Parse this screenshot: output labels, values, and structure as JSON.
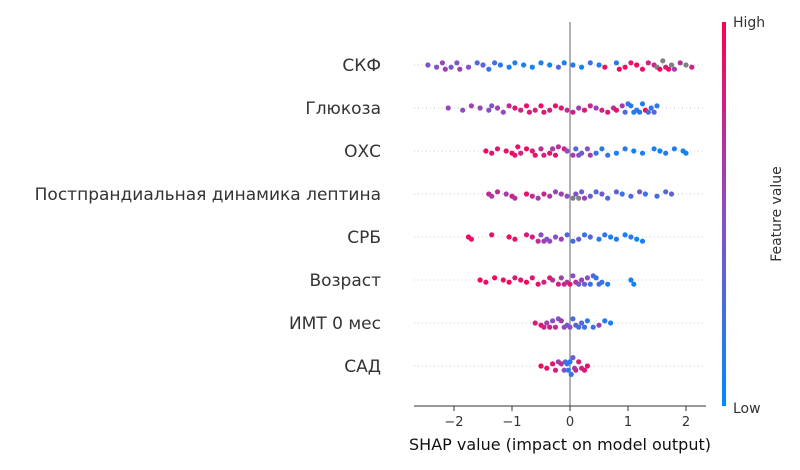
{
  "chart_data": {
    "type": "scatter",
    "subtype": "shap-beeswarm",
    "xlabel": "SHAP value (impact on model output)",
    "xlim": [
      -2.7,
      2.35
    ],
    "xticks": [
      -2,
      -1,
      0,
      1,
      2
    ],
    "xtick_labels": [
      "−2",
      "−1",
      "0",
      "1",
      "2"
    ],
    "grid": false,
    "colorbar": {
      "label": "Feature value",
      "high_label": "High",
      "low_label": "Low",
      "color_low": "#008bfb",
      "color_high": "#ff0052",
      "missing_color": "#808080"
    },
    "features": [
      "СКФ",
      "Глюкоза",
      "ОХС",
      "Постпрандиальная динамика лептина",
      "СРБ",
      "Возраст",
      "ИМТ 0 мес",
      "САД"
    ],
    "series": [
      {
        "feature": "СКФ",
        "points": [
          {
            "x": -2.45,
            "c": 0.45
          },
          {
            "x": -2.3,
            "c": 0.5
          },
          {
            "x": -2.2,
            "c": 0.55
          },
          {
            "x": -2.15,
            "c": 0.6
          },
          {
            "x": -2.05,
            "c": 0.4
          },
          {
            "x": -1.95,
            "c": 0.45
          },
          {
            "x": -1.9,
            "c": 0.6
          },
          {
            "x": -1.75,
            "c": 0.5
          },
          {
            "x": -1.6,
            "c": 0.3
          },
          {
            "x": -1.5,
            "c": 0.35
          },
          {
            "x": -1.4,
            "c": 0.2
          },
          {
            "x": -1.3,
            "c": 0.25
          },
          {
            "x": -1.2,
            "c": 0.15
          },
          {
            "x": -1.05,
            "c": 0.1
          },
          {
            "x": -0.95,
            "c": 0.15
          },
          {
            "x": -0.8,
            "c": 0.1
          },
          {
            "x": -0.65,
            "c": 0.05
          },
          {
            "x": -0.5,
            "c": 0.1
          },
          {
            "x": -0.35,
            "c": 0.05
          },
          {
            "x": -0.2,
            "c": 0.3
          },
          {
            "x": -0.1,
            "c": 0.1
          },
          {
            "x": 0.05,
            "c": 0.15
          },
          {
            "x": 0.2,
            "c": 0.05
          },
          {
            "x": 0.35,
            "c": 0.2
          },
          {
            "x": 0.5,
            "c": 0.1
          },
          {
            "x": 0.6,
            "c": 0.9
          },
          {
            "x": 0.8,
            "c": 0.15
          },
          {
            "x": 0.85,
            "c": 0.95
          },
          {
            "x": 0.95,
            "c": 0.9
          },
          {
            "x": 1.05,
            "c": 0.85
          },
          {
            "x": 1.15,
            "c": 0.95
          },
          {
            "x": 1.25,
            "c": 0.9
          },
          {
            "x": 1.35,
            "c": 0.8
          },
          {
            "x": 1.45,
            "c": 0.75
          },
          {
            "x": 1.5,
            "c": -1
          },
          {
            "x": 1.55,
            "c": 0.95
          },
          {
            "x": 1.6,
            "c": -1
          },
          {
            "x": 1.65,
            "c": 0.85
          },
          {
            "x": 1.7,
            "c": 0.9
          },
          {
            "x": 1.75,
            "c": -1
          },
          {
            "x": 1.8,
            "c": 0.6
          },
          {
            "x": 1.9,
            "c": 0.7
          },
          {
            "x": 2.0,
            "c": -1
          },
          {
            "x": 2.1,
            "c": 0.8
          }
        ]
      },
      {
        "feature": "Глюкоза",
        "points": [
          {
            "x": -2.1,
            "c": 0.55
          },
          {
            "x": -1.85,
            "c": 0.5
          },
          {
            "x": -1.7,
            "c": 0.6
          },
          {
            "x": -1.55,
            "c": 0.55
          },
          {
            "x": -1.4,
            "c": 0.5
          },
          {
            "x": -1.35,
            "c": 0.45
          },
          {
            "x": -1.25,
            "c": 0.6
          },
          {
            "x": -1.15,
            "c": 0.55
          },
          {
            "x": -1.05,
            "c": 0.75
          },
          {
            "x": -0.95,
            "c": 0.85
          },
          {
            "x": -0.85,
            "c": 0.8
          },
          {
            "x": -0.75,
            "c": 0.9
          },
          {
            "x": -0.7,
            "c": 0.85
          },
          {
            "x": -0.6,
            "c": 0.8
          },
          {
            "x": -0.5,
            "c": 0.9
          },
          {
            "x": -0.45,
            "c": 0.85
          },
          {
            "x": -0.35,
            "c": 0.8
          },
          {
            "x": -0.25,
            "c": 0.9
          },
          {
            "x": -0.15,
            "c": 0.85
          },
          {
            "x": -0.05,
            "c": 0.7
          },
          {
            "x": 0.05,
            "c": 0.8
          },
          {
            "x": 0.15,
            "c": 0.6
          },
          {
            "x": 0.25,
            "c": 0.85
          },
          {
            "x": 0.35,
            "c": 0.75
          },
          {
            "x": 0.45,
            "c": 0.6
          },
          {
            "x": 0.55,
            "c": 0.8
          },
          {
            "x": 0.65,
            "c": 0.85
          },
          {
            "x": 0.75,
            "c": 0.7
          },
          {
            "x": 0.8,
            "c": 0.9
          },
          {
            "x": 0.9,
            "c": 0.6
          },
          {
            "x": 0.95,
            "c": 0.3
          },
          {
            "x": 1.0,
            "c": 0.2
          },
          {
            "x": 1.05,
            "c": 0.15
          },
          {
            "x": 1.1,
            "c": 0.1
          },
          {
            "x": 1.15,
            "c": 0.2
          },
          {
            "x": 1.2,
            "c": 0.15
          },
          {
            "x": 1.25,
            "c": 0.1
          },
          {
            "x": 1.3,
            "c": 0.95
          },
          {
            "x": 1.35,
            "c": 0.25
          },
          {
            "x": 1.4,
            "c": 0.2
          },
          {
            "x": 1.45,
            "c": 0.3
          },
          {
            "x": 1.5,
            "c": 0.15
          }
        ]
      },
      {
        "feature": "ОХС",
        "points": [
          {
            "x": -1.45,
            "c": 0.95
          },
          {
            "x": -1.35,
            "c": 0.9
          },
          {
            "x": -1.25,
            "c": 0.85
          },
          {
            "x": -1.1,
            "c": 0.9
          },
          {
            "x": -1.0,
            "c": 0.95
          },
          {
            "x": -0.95,
            "c": 0.85
          },
          {
            "x": -0.9,
            "c": 0.9
          },
          {
            "x": -0.85,
            "c": 0.8
          },
          {
            "x": -0.75,
            "c": 0.95
          },
          {
            "x": -0.65,
            "c": 0.85
          },
          {
            "x": -0.6,
            "c": 0.9
          },
          {
            "x": -0.5,
            "c": 0.7
          },
          {
            "x": -0.45,
            "c": 0.8
          },
          {
            "x": -0.35,
            "c": 0.9
          },
          {
            "x": -0.3,
            "c": 0.6
          },
          {
            "x": -0.25,
            "c": 0.85
          },
          {
            "x": -0.2,
            "c": 0.7
          },
          {
            "x": -0.1,
            "c": 0.8
          },
          {
            "x": -0.05,
            "c": 0.5
          },
          {
            "x": 0.05,
            "c": 0.6
          },
          {
            "x": 0.1,
            "c": 0.3
          },
          {
            "x": 0.15,
            "c": 0.5
          },
          {
            "x": 0.2,
            "c": 0.4
          },
          {
            "x": 0.3,
            "c": 0.5
          },
          {
            "x": 0.35,
            "c": 0.6
          },
          {
            "x": 0.45,
            "c": 0.2
          },
          {
            "x": 0.55,
            "c": 0.15
          },
          {
            "x": 0.65,
            "c": 0.2
          },
          {
            "x": 0.8,
            "c": 0.1
          },
          {
            "x": 0.95,
            "c": 0.15
          },
          {
            "x": 1.1,
            "c": 0.05
          },
          {
            "x": 1.25,
            "c": 0.1
          },
          {
            "x": 1.45,
            "c": 0.1
          },
          {
            "x": 1.55,
            "c": 0.05
          },
          {
            "x": 1.65,
            "c": 0.15
          },
          {
            "x": 1.8,
            "c": 0.1
          },
          {
            "x": 1.95,
            "c": 0.05
          },
          {
            "x": 2.0,
            "c": 0.1
          }
        ]
      },
      {
        "feature": "Постпрандиальная динамика лептина",
        "points": [
          {
            "x": -1.4,
            "c": 0.75
          },
          {
            "x": -1.35,
            "c": 0.6
          },
          {
            "x": -1.25,
            "c": 0.7
          },
          {
            "x": -1.1,
            "c": 0.6
          },
          {
            "x": -1.0,
            "c": 0.8
          },
          {
            "x": -0.95,
            "c": 0.65
          },
          {
            "x": -0.75,
            "c": 0.9
          },
          {
            "x": -0.65,
            "c": 0.7
          },
          {
            "x": -0.55,
            "c": 0.6
          },
          {
            "x": -0.45,
            "c": 0.75
          },
          {
            "x": -0.35,
            "c": 0.65
          },
          {
            "x": -0.25,
            "c": 0.55
          },
          {
            "x": -0.15,
            "c": 0.6
          },
          {
            "x": -0.05,
            "c": 0.5
          },
          {
            "x": 0.05,
            "c": -1
          },
          {
            "x": 0.1,
            "c": 0.45
          },
          {
            "x": 0.15,
            "c": -1
          },
          {
            "x": 0.2,
            "c": 0.4
          },
          {
            "x": 0.25,
            "c": 0.6
          },
          {
            "x": 0.35,
            "c": 0.35
          },
          {
            "x": 0.45,
            "c": 0.3
          },
          {
            "x": 0.55,
            "c": 0.4
          },
          {
            "x": 0.65,
            "c": 0.25
          },
          {
            "x": 0.8,
            "c": 0.35
          },
          {
            "x": 0.9,
            "c": 0.2
          },
          {
            "x": 1.05,
            "c": 0.3
          },
          {
            "x": 1.2,
            "c": 0.45
          },
          {
            "x": 1.3,
            "c": 0.2
          },
          {
            "x": 1.5,
            "c": 0.25
          },
          {
            "x": 1.65,
            "c": 0.3
          },
          {
            "x": 1.75,
            "c": 0.35
          }
        ]
      },
      {
        "feature": "СРБ",
        "points": [
          {
            "x": -1.75,
            "c": 0.95
          },
          {
            "x": -1.7,
            "c": 0.9
          },
          {
            "x": -1.35,
            "c": 0.9
          },
          {
            "x": -1.05,
            "c": 0.95
          },
          {
            "x": -0.95,
            "c": 0.9
          },
          {
            "x": -0.75,
            "c": 0.85
          },
          {
            "x": -0.65,
            "c": 0.8
          },
          {
            "x": -0.55,
            "c": 0.7
          },
          {
            "x": -0.5,
            "c": 0.5
          },
          {
            "x": -0.45,
            "c": 0.6
          },
          {
            "x": -0.4,
            "c": 0.45
          },
          {
            "x": -0.35,
            "c": 0.55
          },
          {
            "x": -0.25,
            "c": 0.5
          },
          {
            "x": -0.15,
            "c": 0.6
          },
          {
            "x": -0.05,
            "c": 0.3
          },
          {
            "x": 0.05,
            "c": 0.25
          },
          {
            "x": 0.15,
            "c": 0.35
          },
          {
            "x": 0.25,
            "c": 0.2
          },
          {
            "x": 0.35,
            "c": 0.3
          },
          {
            "x": 0.5,
            "c": 0.15
          },
          {
            "x": 0.6,
            "c": 0.2
          },
          {
            "x": 0.7,
            "c": 0.1
          },
          {
            "x": 0.8,
            "c": 0.15
          },
          {
            "x": 0.95,
            "c": 0.1
          },
          {
            "x": 1.05,
            "c": 0.15
          },
          {
            "x": 1.15,
            "c": 0.05
          },
          {
            "x": 1.25,
            "c": 0.1
          }
        ]
      },
      {
        "feature": "Возраст",
        "points": [
          {
            "x": -1.55,
            "c": 0.95
          },
          {
            "x": -1.45,
            "c": 0.9
          },
          {
            "x": -1.3,
            "c": 0.95
          },
          {
            "x": -1.15,
            "c": 0.9
          },
          {
            "x": -1.05,
            "c": 0.95
          },
          {
            "x": -0.95,
            "c": 0.85
          },
          {
            "x": -0.85,
            "c": 0.9
          },
          {
            "x": -0.75,
            "c": 0.95
          },
          {
            "x": -0.65,
            "c": 0.85
          },
          {
            "x": -0.55,
            "c": 0.9
          },
          {
            "x": -0.45,
            "c": 0.8
          },
          {
            "x": -0.35,
            "c": 0.85
          },
          {
            "x": -0.3,
            "c": 0.7
          },
          {
            "x": -0.2,
            "c": 0.8
          },
          {
            "x": -0.15,
            "c": 0.6
          },
          {
            "x": -0.1,
            "c": 0.75
          },
          {
            "x": -0.05,
            "c": 0.65
          },
          {
            "x": 0.0,
            "c": 0.9
          },
          {
            "x": 0.05,
            "c": 0.5
          },
          {
            "x": 0.1,
            "c": 0.7
          },
          {
            "x": 0.15,
            "c": 0.4
          },
          {
            "x": 0.2,
            "c": 0.6
          },
          {
            "x": 0.25,
            "c": 0.35
          },
          {
            "x": 0.3,
            "c": 0.5
          },
          {
            "x": 0.35,
            "c": 0.2
          },
          {
            "x": 0.4,
            "c": 0.3
          },
          {
            "x": 0.45,
            "c": 0.15
          },
          {
            "x": 0.5,
            "c": 0.25
          },
          {
            "x": 0.55,
            "c": 0.2
          },
          {
            "x": 0.65,
            "c": 0.1
          },
          {
            "x": 1.05,
            "c": 0.1
          },
          {
            "x": 1.1,
            "c": 0.05
          }
        ]
      },
      {
        "feature": "ИМТ 0 мес",
        "points": [
          {
            "x": -0.6,
            "c": 0.85
          },
          {
            "x": -0.5,
            "c": 0.9
          },
          {
            "x": -0.45,
            "c": 0.75
          },
          {
            "x": -0.4,
            "c": 0.6
          },
          {
            "x": -0.35,
            "c": 0.8
          },
          {
            "x": -0.3,
            "c": 0.5
          },
          {
            "x": -0.25,
            "c": 0.7
          },
          {
            "x": -0.2,
            "c": 0.45
          },
          {
            "x": -0.15,
            "c": 0.65
          },
          {
            "x": -0.1,
            "c": 0.55
          },
          {
            "x": -0.05,
            "c": 0.4
          },
          {
            "x": 0.0,
            "c": 0.5
          },
          {
            "x": 0.05,
            "c": 0.3
          },
          {
            "x": 0.1,
            "c": 0.35
          },
          {
            "x": 0.15,
            "c": 0.25
          },
          {
            "x": 0.2,
            "c": 0.3
          },
          {
            "x": 0.25,
            "c": 0.2
          },
          {
            "x": 0.3,
            "c": 0.15
          },
          {
            "x": 0.4,
            "c": 0.2
          },
          {
            "x": 0.5,
            "c": 0.6
          },
          {
            "x": 0.6,
            "c": 0.15
          },
          {
            "x": 0.7,
            "c": 0.1
          }
        ]
      },
      {
        "feature": "САД",
        "points": [
          {
            "x": -0.5,
            "c": 0.95
          },
          {
            "x": -0.4,
            "c": 0.9
          },
          {
            "x": -0.3,
            "c": 0.85
          },
          {
            "x": -0.25,
            "c": 0.8
          },
          {
            "x": -0.2,
            "c": 0.6
          },
          {
            "x": -0.15,
            "c": 0.7
          },
          {
            "x": -0.1,
            "c": 0.5
          },
          {
            "x": -0.08,
            "c": 0.3
          },
          {
            "x": -0.05,
            "c": 0.2
          },
          {
            "x": -0.03,
            "c": 0.15
          },
          {
            "x": 0.0,
            "c": 0.1
          },
          {
            "x": 0.02,
            "c": 0.2
          },
          {
            "x": 0.05,
            "c": 0.4
          },
          {
            "x": 0.08,
            "c": 0.6
          },
          {
            "x": 0.1,
            "c": 0.7
          },
          {
            "x": 0.15,
            "c": 0.8
          },
          {
            "x": 0.2,
            "c": 0.75
          },
          {
            "x": 0.25,
            "c": 0.85
          },
          {
            "x": 0.3,
            "c": 0.9
          }
        ]
      }
    ]
  }
}
